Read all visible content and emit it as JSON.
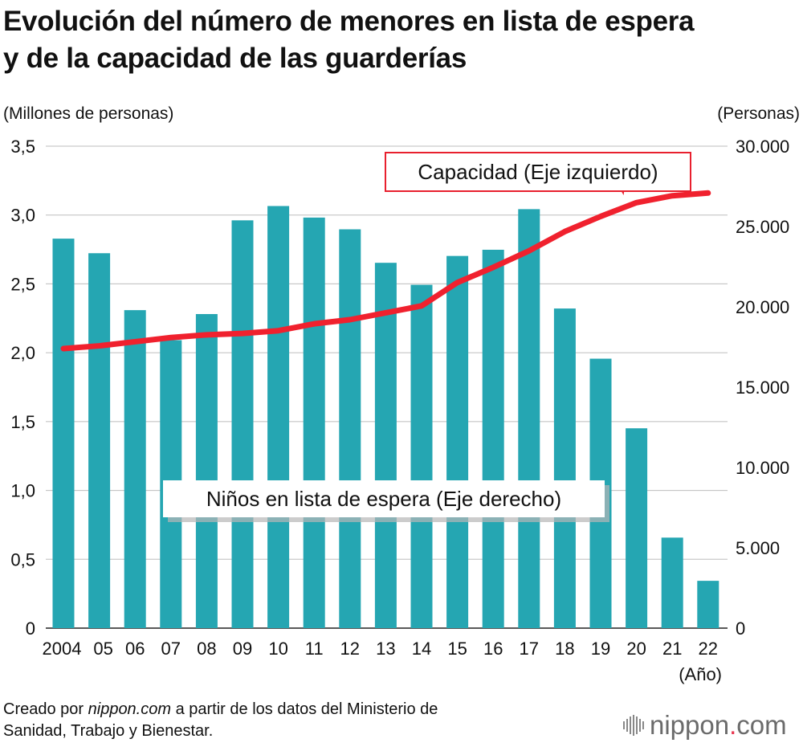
{
  "title_lines": [
    "Evolución del número de menores en lista de espera",
    "y de la capacidad de las guarderías"
  ],
  "chart_data": {
    "type": "bar",
    "categories": [
      "2004",
      "05",
      "06",
      "07",
      "08",
      "09",
      "10",
      "11",
      "12",
      "13",
      "14",
      "15",
      "16",
      "17",
      "18",
      "19",
      "20",
      "21",
      "22"
    ],
    "x_unit": "(Año)",
    "left_axis": {
      "label": "(Millones de personas)",
      "range": [
        0,
        3.5
      ],
      "ticks": [
        "0",
        "0,5",
        "1,0",
        "1,5",
        "2,0",
        "2,5",
        "3,0",
        "3,5"
      ]
    },
    "right_axis": {
      "label": "(Personas)",
      "range": [
        0,
        30000
      ],
      "ticks": [
        "0",
        "5.000",
        "10.000",
        "15.000",
        "20.000",
        "25.000",
        "30.000"
      ]
    },
    "grid": true,
    "series": [
      {
        "name": "Niños en lista de espera (Eje derecho)",
        "type": "bar",
        "axis": "right",
        "color": "#25a6b2",
        "values": [
          24245,
          23338,
          19794,
          17926,
          19550,
          25384,
          26275,
          25556,
          24825,
          22741,
          21371,
          23167,
          23553,
          26081,
          19895,
          16772,
          12439,
          5634,
          2944
        ]
      },
      {
        "name": "Capacidad (Eje izquierdo)",
        "type": "line",
        "axis": "left",
        "color": "#f0212e",
        "values": [
          2.03,
          2.05,
          2.08,
          2.11,
          2.13,
          2.14,
          2.16,
          2.21,
          2.24,
          2.29,
          2.34,
          2.51,
          2.62,
          2.74,
          2.88,
          2.99,
          3.09,
          3.14,
          3.16
        ]
      }
    ]
  },
  "footer": {
    "prefix": "Creado por ",
    "site": "nippon.com",
    "suffix_line1": " a partir de los datos del Ministerio de",
    "line2": "Sanidad, Trabajo y Bienestar."
  },
  "logo": {
    "main": "nippon",
    "dot": ".",
    "tld": "com"
  }
}
